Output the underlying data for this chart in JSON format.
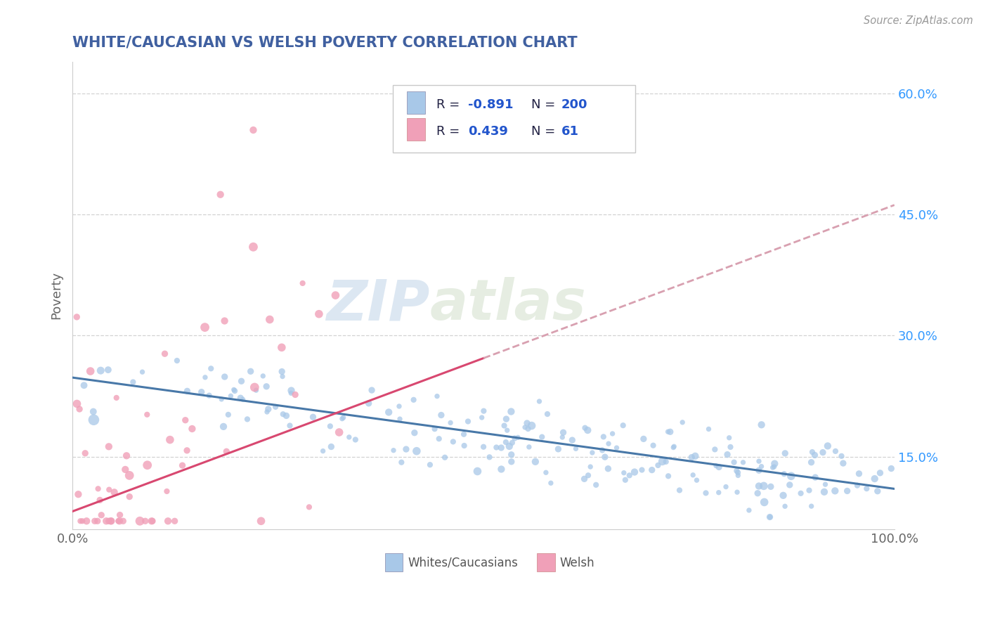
{
  "title": "WHITE/CAUCASIAN VS WELSH POVERTY CORRELATION CHART",
  "source_text": "Source: ZipAtlas.com",
  "ylabel": "Poverty",
  "watermark_zip": "ZIP",
  "watermark_atlas": "atlas",
  "blue_color": "#a8c8e8",
  "pink_color": "#f0a0b8",
  "blue_line_color": "#4878a8",
  "pink_line_color": "#d84870",
  "pink_dash_color": "#d8a0b0",
  "title_color": "#4060a0",
  "legend_text_color": "#222288",
  "legend_n_color": "#3399ff",
  "xmin": 0.0,
  "xmax": 1.0,
  "ymin": 0.06,
  "ymax": 0.64,
  "yticks": [
    0.15,
    0.3,
    0.45,
    0.6
  ],
  "ytick_labels": [
    "15.0%",
    "30.0%",
    "45.0%",
    "60.0%"
  ],
  "xticks": [
    0.0,
    1.0
  ],
  "xtick_labels": [
    "0.0%",
    "100.0%"
  ],
  "blue_intercept": 0.248,
  "blue_slope": -0.138,
  "pink_intercept": 0.082,
  "pink_slope": 0.38,
  "grid_color": "#c8c8c8",
  "background_color": "#ffffff"
}
